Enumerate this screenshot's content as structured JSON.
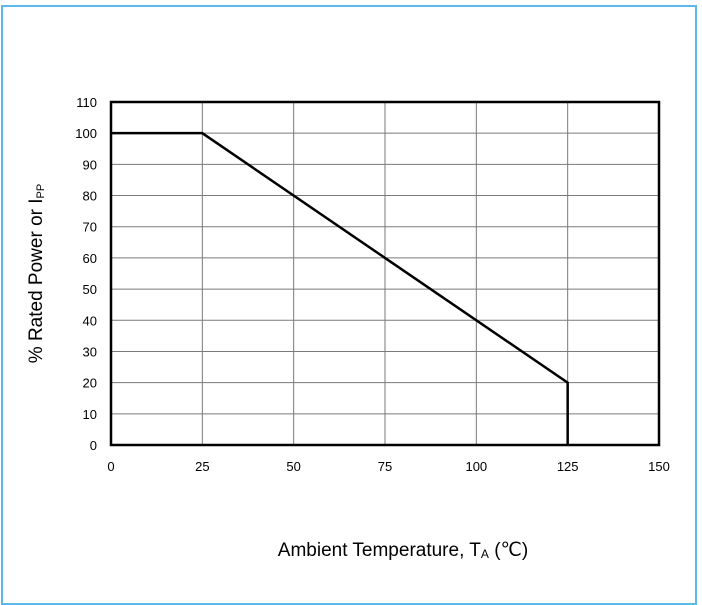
{
  "chart_data": {
    "type": "line",
    "title": "",
    "xlabel": {
      "text": "Ambient Temperature, T",
      "subscript": "A",
      "unit": " (℃)"
    },
    "ylabel": {
      "text": "% Rated Power or I",
      "subscript": "PP"
    },
    "xlim": [
      0,
      150
    ],
    "ylim": [
      0,
      110
    ],
    "xticks": [
      0,
      25,
      50,
      75,
      100,
      125,
      150
    ],
    "yticks": [
      0,
      10,
      20,
      30,
      40,
      50,
      60,
      70,
      80,
      90,
      100,
      110
    ],
    "grid": true,
    "legend": "none",
    "series": [
      {
        "color": "#000000",
        "points": [
          [
            0,
            100
          ],
          [
            25,
            100
          ],
          [
            125,
            20
          ],
          [
            125,
            0
          ]
        ]
      }
    ]
  },
  "colors": {
    "frame_border": "#5bb8e8",
    "grid": "#7a7a7a",
    "line": "#000000"
  }
}
